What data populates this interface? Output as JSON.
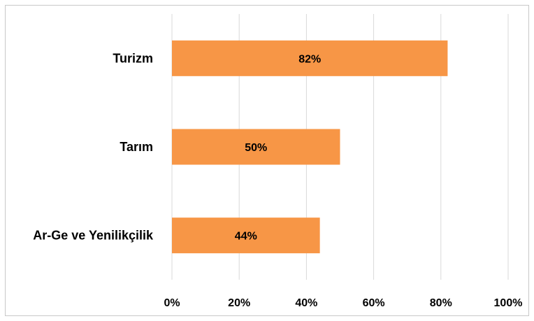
{
  "chart_data": {
    "type": "bar",
    "orientation": "horizontal",
    "categories": [
      "Turizm",
      "Tarım",
      "Ar-Ge ve Yenilikçilik"
    ],
    "values": [
      82,
      50,
      44
    ],
    "data_labels": [
      "82%",
      "50%",
      "44%"
    ],
    "xlim": [
      0,
      100
    ],
    "x_ticks": [
      "0%",
      "20%",
      "40%",
      "60%",
      "80%",
      "100%"
    ],
    "grid": true,
    "legend": "none",
    "bar_color": "#f79646"
  }
}
